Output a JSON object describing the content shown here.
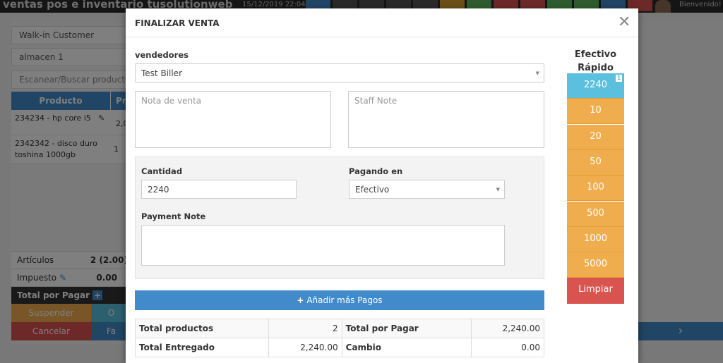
{
  "topbar": {
    "title": "ventas pos e inventario tusolutionweb",
    "datetime": "15/12/2019 22:04",
    "welcome": "Bienvenido! tu",
    "buttons": [
      {
        "icon": "dashboard-icon",
        "color": "#428bca"
      },
      {
        "icon": "cogs-icon",
        "color": "#555"
      },
      {
        "icon": "calculator-icon",
        "color": "#555"
      },
      {
        "icon": "key-icon",
        "color": "#555"
      },
      {
        "icon": "laptop-icon",
        "color": "#555"
      },
      {
        "icon": "grid-icon",
        "color": "#d6a031"
      },
      {
        "icon": "check-icon",
        "color": "#5cb85c"
      },
      {
        "icon": "times-circle-icon",
        "color": "#d9534f"
      },
      {
        "icon": "dollar-icon",
        "color": "#d9534f"
      },
      {
        "icon": "hourglass-icon",
        "color": "#5cb85c"
      },
      {
        "icon": "heart-icon",
        "color": "#5cb85c"
      },
      {
        "icon": "list-icon",
        "color": "#428bca"
      },
      {
        "icon": "eraser-icon",
        "color": "#d9534f"
      }
    ]
  },
  "pos": {
    "customer": "Walk-in Customer",
    "warehouse": "almacen 1",
    "search_placeholder": "Escanear/Buscar producto por",
    "columns": [
      "Producto",
      "Pr"
    ],
    "rows": [
      {
        "product": "234234 - hp core i5",
        "price": "2,0"
      },
      {
        "product": "2342342 - disco duro toshina 1000gb",
        "price": "1"
      }
    ],
    "articulos_label": "Artículos",
    "articulos_value": "2 (2.00)",
    "impuesto_label": "Impuesto",
    "impuesto_value": "0.00",
    "total_label": "Total por Pagar",
    "suspend": "Suspender",
    "cancel": "Cancelar",
    "btn_o": "O",
    "btn_fa": "Fa"
  },
  "modal": {
    "title": "FINALIZAR VENTA",
    "vendedores_label": "vendedores",
    "vendedor": "Test Biller",
    "nota_placeholder": "Nota de venta",
    "staff_placeholder": "Staff Note",
    "cantidad_label": "Cantidad",
    "cantidad": "2240",
    "pagando_label": "Pagando en",
    "pagando": "Efectivo",
    "payment_note_label": "Payment Note",
    "add_payments": "Añadir más Pagos",
    "summary": [
      [
        "Total productos",
        "2",
        "Total por Pagar",
        "2,240.00"
      ],
      [
        "Total Entregado",
        "2,240.00",
        "Cambio",
        "0.00"
      ]
    ],
    "quick_cash_title": "Efectivo Rápido",
    "quick": [
      "2240",
      "10",
      "20",
      "50",
      "100",
      "500",
      "1000",
      "5000"
    ],
    "quick_badge": "1",
    "clear": "Limpiar",
    "colors": {
      "primary": "#428bca",
      "info": "#5bc0de",
      "warning": "#f0ad4e",
      "danger": "#d9534f"
    }
  }
}
